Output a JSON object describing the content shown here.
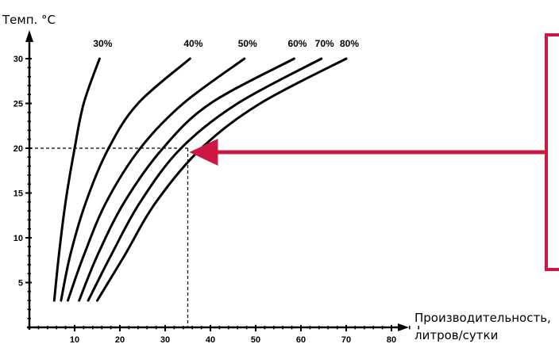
{
  "chart_data": {
    "type": "line",
    "ylabel": "Темп. °С",
    "xlabel_lines": [
      "Производительность,",
      "литров/сутки"
    ],
    "x_ticks": [
      10,
      20,
      30,
      40,
      50,
      60,
      70,
      80
    ],
    "y_ticks": [
      5,
      10,
      15,
      20,
      25,
      30
    ],
    "xlim": [
      0,
      80
    ],
    "ylim": [
      0,
      30
    ],
    "grid": false,
    "series": [
      {
        "name": "30%",
        "points": [
          [
            5.5,
            3
          ],
          [
            6.5,
            8
          ],
          [
            8,
            14
          ],
          [
            10,
            20
          ],
          [
            12,
            25
          ],
          [
            15.5,
            30
          ]
        ]
      },
      {
        "name": "40%",
        "points": [
          [
            7,
            3
          ],
          [
            9,
            8
          ],
          [
            12.5,
            14
          ],
          [
            17.5,
            20
          ],
          [
            24,
            25
          ],
          [
            35.5,
            30
          ]
        ]
      },
      {
        "name": "50%",
        "points": [
          [
            8.5,
            3
          ],
          [
            12,
            8
          ],
          [
            17,
            14
          ],
          [
            24.5,
            20
          ],
          [
            34,
            25
          ],
          [
            47.5,
            30
          ]
        ]
      },
      {
        "name": "60%",
        "points": [
          [
            11,
            3
          ],
          [
            15,
            8
          ],
          [
            21,
            14
          ],
          [
            29.5,
            20
          ],
          [
            40,
            25
          ],
          [
            58.5,
            30
          ]
        ]
      },
      {
        "name": "70%",
        "points": [
          [
            13,
            3
          ],
          [
            18,
            8
          ],
          [
            24.5,
            14
          ],
          [
            33.5,
            20
          ],
          [
            46,
            25
          ],
          [
            64.5,
            30
          ]
        ]
      },
      {
        "name": "80%",
        "points": [
          [
            15,
            3
          ],
          [
            21,
            8
          ],
          [
            28,
            14
          ],
          [
            38,
            20
          ],
          [
            51,
            25
          ],
          [
            70,
            30
          ]
        ]
      }
    ],
    "annotation": {
      "x": 35,
      "y": 20
    },
    "colors": {
      "curves": "#000000",
      "axis": "#000000",
      "arrow": "#cc1744",
      "box": "#cc1744"
    }
  }
}
